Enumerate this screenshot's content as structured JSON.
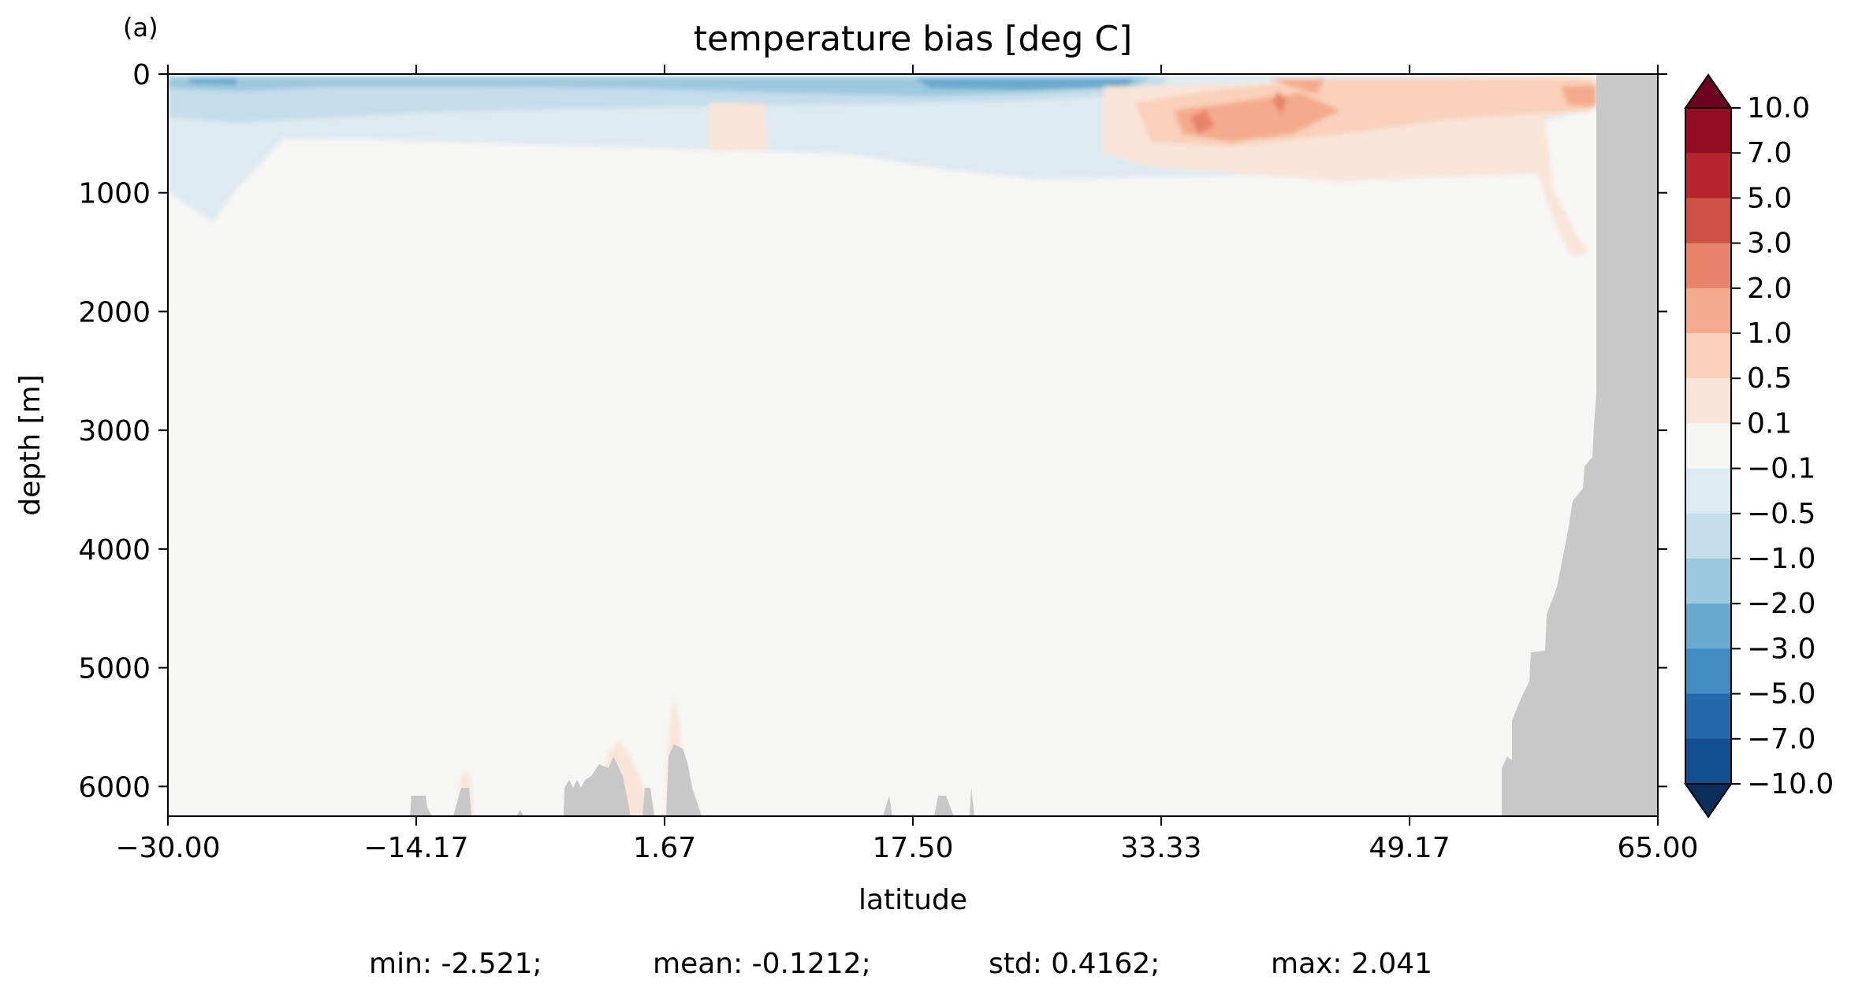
{
  "panel_label": "(a)",
  "chart_data": {
    "type": "heatmap",
    "title": "temperature bias [deg C]",
    "xlabel": "latitude",
    "ylabel": "depth [m]",
    "xlim": [
      -30.0,
      65.0
    ],
    "ylim": [
      6250,
      0
    ],
    "x_ticks": [
      "−30.00",
      "−14.17",
      "1.67",
      "17.50",
      "33.33",
      "49.17",
      "65.00"
    ],
    "x_tick_values": [
      -30.0,
      -14.17,
      1.67,
      17.5,
      33.33,
      49.17,
      65.0
    ],
    "y_ticks": [
      "0",
      "1000",
      "2000",
      "3000",
      "4000",
      "5000",
      "6000"
    ],
    "y_tick_values": [
      0,
      1000,
      2000,
      3000,
      4000,
      5000,
      6000
    ],
    "colorbar": {
      "labels": [
        "10.0",
        "7.0",
        "5.0",
        "3.0",
        "2.0",
        "1.0",
        "0.5",
        "0.1",
        "−0.1",
        "−0.5",
        "−1.0",
        "−2.0",
        "−3.0",
        "−5.0",
        "−7.0",
        "−10.0"
      ],
      "levels": [
        10,
        7,
        5,
        3,
        2,
        1,
        0.5,
        0.1,
        -0.1,
        -0.5,
        -1,
        -2,
        -3,
        -5,
        -7,
        -10
      ],
      "band_colors": [
        "#920d23",
        "#b62430",
        "#cf5146",
        "#e6836a",
        "#f4ab8b",
        "#f9d0ba",
        "#f9e4d8",
        "#f5f5f4",
        "#deeaf2",
        "#c4ddeb",
        "#9dc9df",
        "#6aa9cf",
        "#3f8cc0",
        "#2568ab",
        "#134e8f"
      ],
      "over_color": "#6b0220",
      "under_color": "#092e5c",
      "extend": "both"
    },
    "colors": {
      "background_field": "#f6f6f5",
      "land_mask": "#c8c8c8"
    },
    "stats": {
      "min": "min: -2.521;",
      "mean": "mean: -0.1212;",
      "std": "std: 0.4162;",
      "max": "max: 2.041"
    }
  }
}
